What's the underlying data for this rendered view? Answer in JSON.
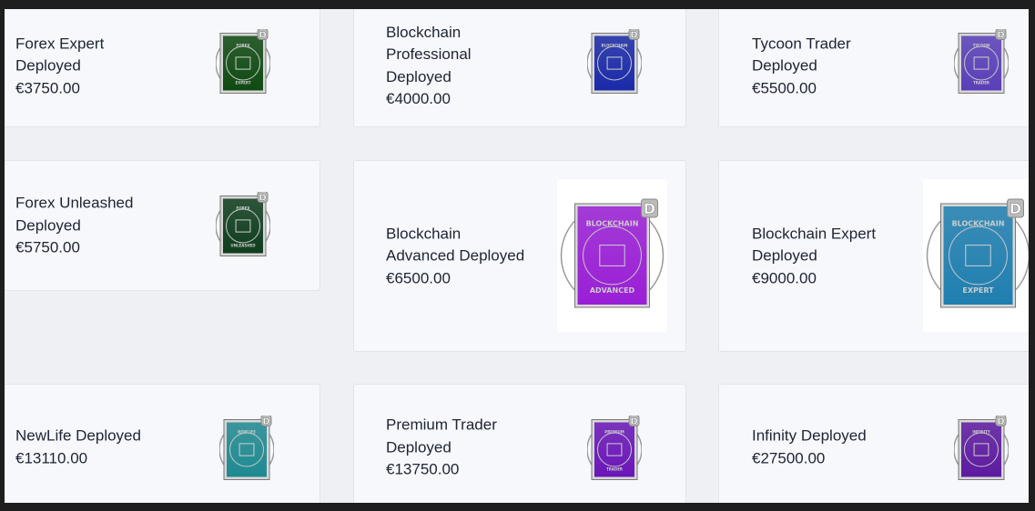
{
  "cards": [
    {
      "title_lines": [
        "Forex Expert",
        "Deployed"
      ],
      "price": "€3750.00",
      "badge": {
        "label": [
          "FOREX",
          "EXPERT"
        ],
        "color": "#0f4a12",
        "icon": "candlestick-icon"
      }
    },
    {
      "title_lines": [
        "Blockchain",
        "Professional",
        "Deployed"
      ],
      "price": "€4000.00",
      "badge": {
        "label": [
          "BLOCKCHAIN",
          ""
        ],
        "color": "#1a2aa8",
        "icon": "blockchain-icon"
      }
    },
    {
      "title_lines": [
        "Tycoon Trader",
        "Deployed"
      ],
      "price": "€5500.00",
      "badge": {
        "label": [
          "TYCOON",
          "TRADER"
        ],
        "color": "#5a3fb8",
        "icon": "bar-chart-icon"
      }
    },
    {
      "title_lines": [
        "Forex Unleashed",
        "Deployed"
      ],
      "price": "€5750.00",
      "badge": {
        "label": [
          "FOREX",
          "UNLEASHED"
        ],
        "color": "#0f3d1e",
        "icon": "growth-chart-icon"
      }
    },
    {
      "title_lines": [
        "Blockchain",
        "Advanced Deployed"
      ],
      "price": "€6500.00",
      "badge": {
        "label": [
          "BLOCKCHAIN",
          "ADVANCED"
        ],
        "color": "#9a1fd6",
        "icon": "blockchain-icon"
      }
    },
    {
      "title_lines": [
        "Blockchain Expert",
        "Deployed"
      ],
      "price": "€9000.00",
      "badge": {
        "label": [
          "BLOCKCHAIN",
          "EXPERT"
        ],
        "color": "#1f7fb0",
        "icon": "blockchain-network-icon"
      }
    },
    {
      "title_lines": [
        "NewLife Deployed"
      ],
      "price": "€13110.00",
      "badge": {
        "label": [
          "NEWLIFE",
          ""
        ],
        "color": "#1f8a91",
        "icon": "person-icon"
      }
    },
    {
      "title_lines": [
        "Premium Trader",
        "Deployed"
      ],
      "price": "€13750.00",
      "badge": {
        "label": [
          "PREMIUM",
          "TRADER"
        ],
        "color": "#6a16b8",
        "icon": "head-dollar-icon"
      }
    },
    {
      "title_lines": [
        "Infinity Deployed"
      ],
      "price": "€27500.00",
      "badge": {
        "label": [
          "INFINITY",
          ""
        ],
        "color": "#5d1aa0",
        "icon": "infinity-icon"
      }
    }
  ]
}
